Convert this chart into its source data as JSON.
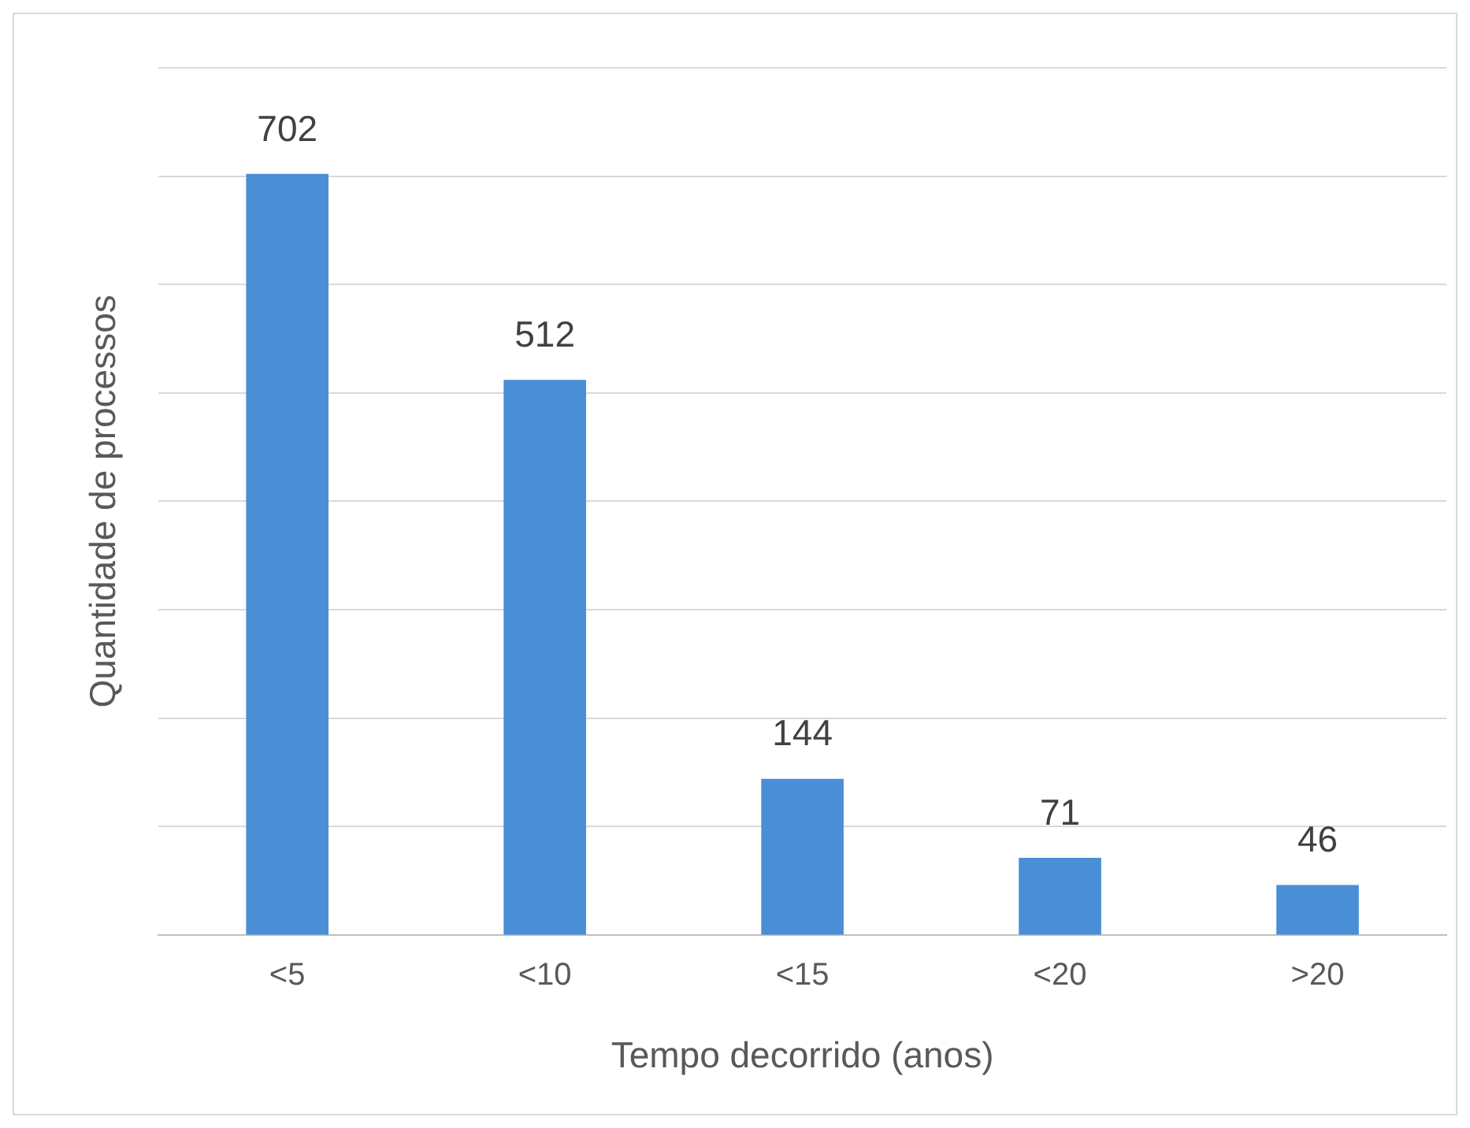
{
  "chart_data": {
    "type": "bar",
    "xlabel": "Tempo decorrido (anos)",
    "ylabel": "Quantidade de processos",
    "categories": [
      "<5",
      "<10",
      "<15",
      "<20",
      ">20"
    ],
    "values": [
      702,
      512,
      144,
      71,
      46
    ],
    "color": "#4a8fd6",
    "ylim": [
      0,
      800
    ],
    "yticks": [
      {
        "value": 0,
        "label": null
      },
      {
        "value": 100,
        "label": null
      },
      {
        "value": 200,
        "label": null
      },
      {
        "value": 300,
        "label": null
      },
      {
        "value": 400,
        "label": null
      },
      {
        "value": 500,
        "label": null
      },
      {
        "value": 600,
        "label": null
      },
      {
        "value": 700,
        "label": null
      },
      {
        "value": 800,
        "label": null
      }
    ],
    "grid": "y",
    "tick_labels": "x",
    "data_labels": true,
    "legend": false
  }
}
